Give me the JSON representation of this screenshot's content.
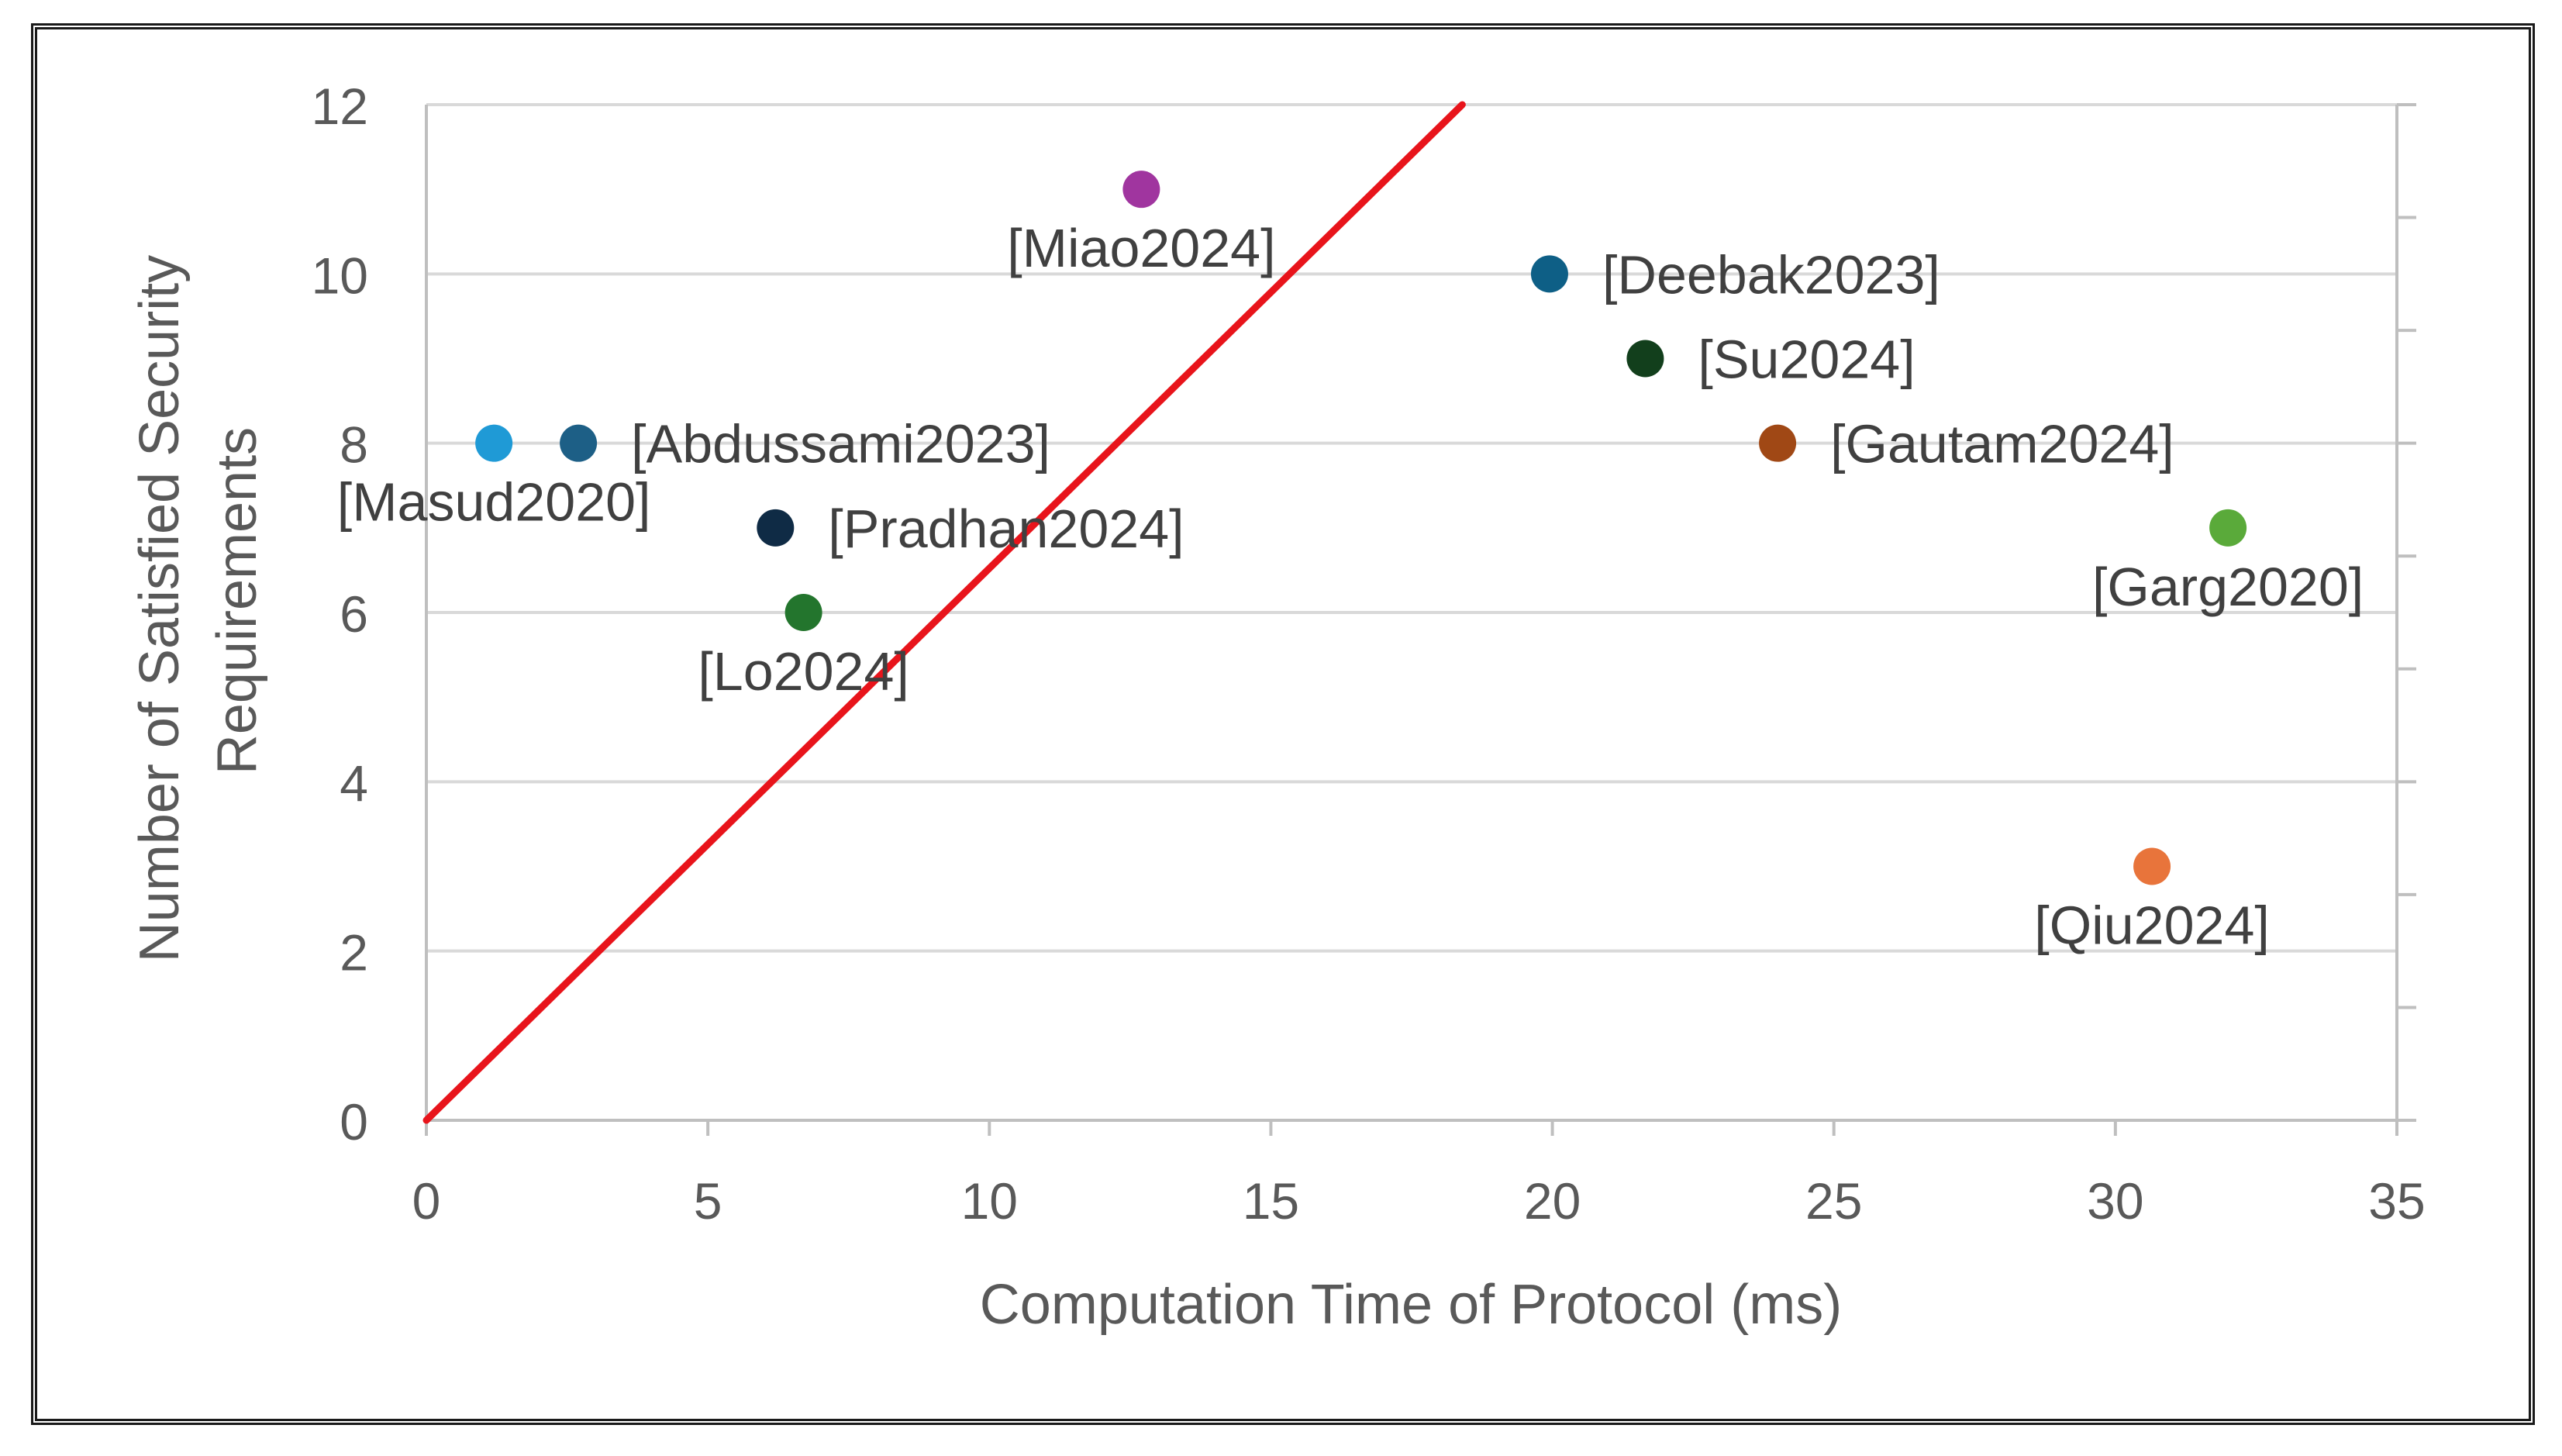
{
  "chart_data": {
    "type": "scatter",
    "title": "",
    "xlabel": "Computation Time of Protocol (ms)",
    "ylabel_lines": [
      "Number of Satisfied Security",
      "Requirements"
    ],
    "xlim": [
      0,
      35
    ],
    "ylim": [
      0,
      12
    ],
    "x_ticks": [
      "0",
      "5",
      "10",
      "15",
      "20",
      "25",
      "30",
      "35"
    ],
    "y_ticks": [
      "0",
      "2",
      "4",
      "6",
      "8",
      "10",
      "12"
    ],
    "grid": true,
    "trend_line": {
      "color": "#e8141b",
      "x": [
        0,
        18.4
      ],
      "y": [
        0,
        12
      ]
    },
    "points": [
      {
        "label": "[Masud2020]",
        "x": 1.2,
        "y": 8,
        "color": "#1f9ad6",
        "label_pos": "below"
      },
      {
        "label": "[Abdussami2023]",
        "x": 2.7,
        "y": 8,
        "color": "#1d5f86",
        "label_pos": "right"
      },
      {
        "label": "[Pradhan2024]",
        "x": 6.2,
        "y": 7,
        "color": "#0f2b45",
        "label_pos": "right"
      },
      {
        "label": "[Lo2024]",
        "x": 6.7,
        "y": 6,
        "color": "#23752d",
        "label_pos": "below"
      },
      {
        "label": "[Miao2024]",
        "x": 12.7,
        "y": 11,
        "color": "#a0359f",
        "label_pos": "below"
      },
      {
        "label": "[Deebak2023]",
        "x": 19.95,
        "y": 10,
        "color": "#0e5f86",
        "label_pos": "right"
      },
      {
        "label": "[Su2024]",
        "x": 21.65,
        "y": 9,
        "color": "#123f1c",
        "label_pos": "right"
      },
      {
        "label": "[Gautam2024]",
        "x": 24.0,
        "y": 8,
        "color": "#a04815",
        "label_pos": "right"
      },
      {
        "label": "[Garg2020]",
        "x": 32.0,
        "y": 7,
        "color": "#5aaa3a",
        "label_pos": "below"
      },
      {
        "label": "[Qiu2024]",
        "x": 30.65,
        "y": 3,
        "color": "#e8743b",
        "label_pos": "below"
      }
    ]
  }
}
